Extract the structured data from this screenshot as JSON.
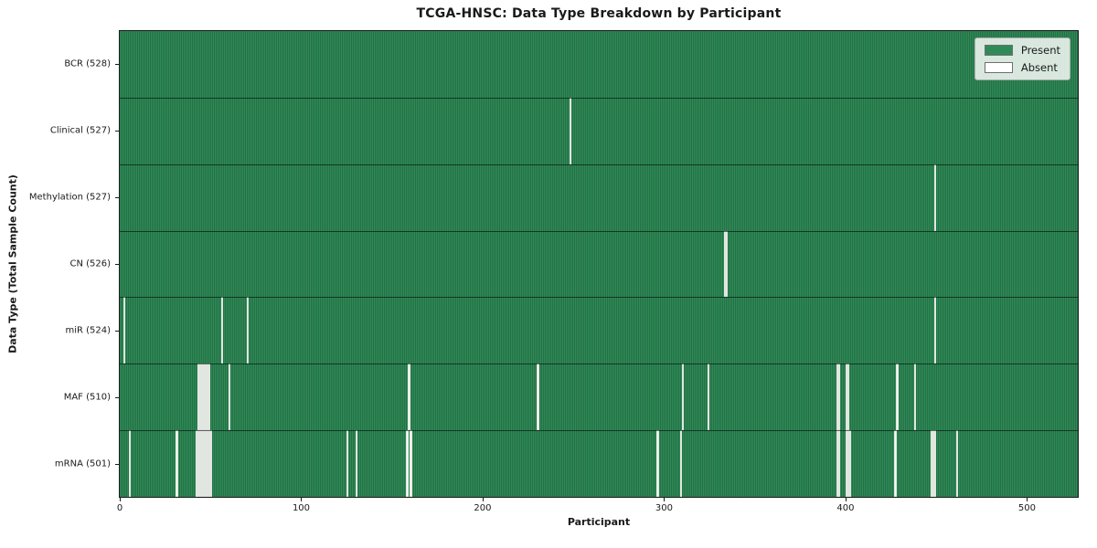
{
  "title": "TCGA-HNSC: Data Type Breakdown by Participant",
  "xlabel": "Participant",
  "ylabel": "Data Type (Total Sample Count)",
  "legend": {
    "present": "Present",
    "absent": "Absent"
  },
  "colors": {
    "present": "#2e8b57",
    "present_dark": "#1c5636",
    "absent": "#ffffff",
    "axis": "#1a1a1a",
    "legend_border": "#a8a8a8"
  },
  "x_ticks": [
    0,
    100,
    200,
    300,
    400,
    500
  ],
  "chart_data": {
    "type": "heatmap",
    "title": "TCGA-HNSC: Data Type Breakdown by Participant",
    "xlabel": "Participant",
    "ylabel": "Data Type (Total Sample Count)",
    "x_range": [
      0,
      528
    ],
    "total_participants": 528,
    "grid": false,
    "legend_entries": [
      "Present",
      "Absent"
    ],
    "legend_position": "upper right",
    "rows": [
      {
        "label": "BCR (528)",
        "present_count": 528,
        "absent_count": 0,
        "absent_participants": []
      },
      {
        "label": "Clinical (527)",
        "present_count": 527,
        "absent_count": 1,
        "absent_participants": [
          248
        ]
      },
      {
        "label": "Methylation (527)",
        "present_count": 527,
        "absent_count": 1,
        "absent_participants": [
          449
        ]
      },
      {
        "label": "CN (526)",
        "present_count": 526,
        "absent_count": 2,
        "absent_participants": [
          333,
          334
        ]
      },
      {
        "label": "miR (524)",
        "present_count": 524,
        "absent_count": 4,
        "absent_participants": [
          2,
          56,
          70,
          449
        ]
      },
      {
        "label": "MAF (510)",
        "present_count": 510,
        "absent_count": 18,
        "absent_participants": [
          43,
          44,
          45,
          46,
          47,
          48,
          49,
          60,
          159,
          230,
          310,
          324,
          395,
          396,
          400,
          401,
          428,
          438
        ]
      },
      {
        "label": "mRNA (501)",
        "present_count": 501,
        "absent_count": 27,
        "absent_participants": [
          5,
          31,
          42,
          43,
          44,
          45,
          46,
          47,
          48,
          49,
          50,
          125,
          130,
          158,
          160,
          296,
          309,
          395,
          396,
          400,
          401,
          402,
          427,
          447,
          448,
          449,
          461
        ]
      }
    ]
  }
}
